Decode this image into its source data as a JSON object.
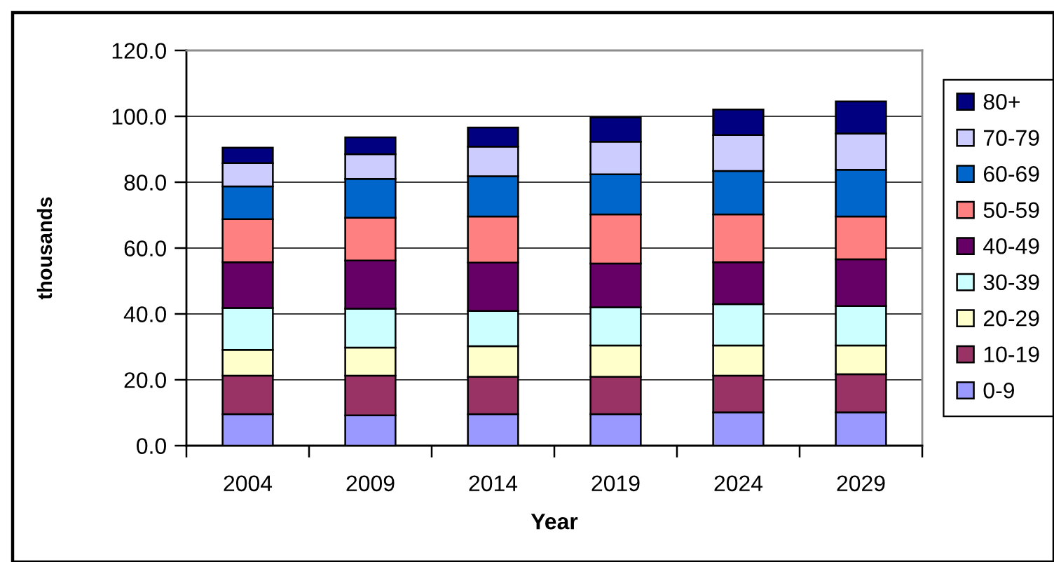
{
  "chart_data": {
    "type": "bar",
    "stacked": true,
    "xlabel": "Year",
    "ylabel": "thousands",
    "categories": [
      "2004",
      "2009",
      "2014",
      "2019",
      "2024",
      "2029"
    ],
    "series": [
      {
        "name": "0-9",
        "color": "#9999ff",
        "values": [
          9.6,
          9.2,
          9.6,
          9.6,
          10.1,
          10.1
        ]
      },
      {
        "name": "10-19",
        "color": "#993366",
        "values": [
          11.7,
          12.1,
          11.3,
          11.3,
          11.2,
          11.6
        ]
      },
      {
        "name": "20-29",
        "color": "#ffffcc",
        "values": [
          7.8,
          8.5,
          9.3,
          9.5,
          9.1,
          8.7
        ]
      },
      {
        "name": "30-39",
        "color": "#ccffff",
        "values": [
          12.7,
          11.8,
          10.7,
          11.6,
          12.6,
          12.0
        ]
      },
      {
        "name": "40-49",
        "color": "#660066",
        "values": [
          13.9,
          14.6,
          14.7,
          13.3,
          12.7,
          14.2
        ]
      },
      {
        "name": "50-59",
        "color": "#ff8080",
        "values": [
          13.1,
          13.0,
          14.0,
          14.9,
          14.5,
          13.0
        ]
      },
      {
        "name": "60-69",
        "color": "#0066cc",
        "values": [
          9.9,
          11.8,
          12.2,
          12.2,
          13.2,
          14.2
        ]
      },
      {
        "name": "70-79",
        "color": "#ccccff",
        "values": [
          7.1,
          7.5,
          9.0,
          9.9,
          10.9,
          11.0
        ]
      },
      {
        "name": "80+",
        "color": "#000080",
        "values": [
          4.7,
          5.1,
          5.8,
          7.4,
          7.8,
          9.7
        ]
      }
    ],
    "ylim": [
      0,
      120
    ],
    "yticks": [
      {
        "value": 0,
        "label": "0.0"
      },
      {
        "value": 20,
        "label": "20.0"
      },
      {
        "value": 40,
        "label": "40.0"
      },
      {
        "value": 60,
        "label": "60.0"
      },
      {
        "value": 80,
        "label": "80.0"
      },
      {
        "value": 100,
        "label": "100.0"
      },
      {
        "value": 120,
        "label": "120.0"
      }
    ],
    "grid": "y",
    "legend": "right"
  }
}
